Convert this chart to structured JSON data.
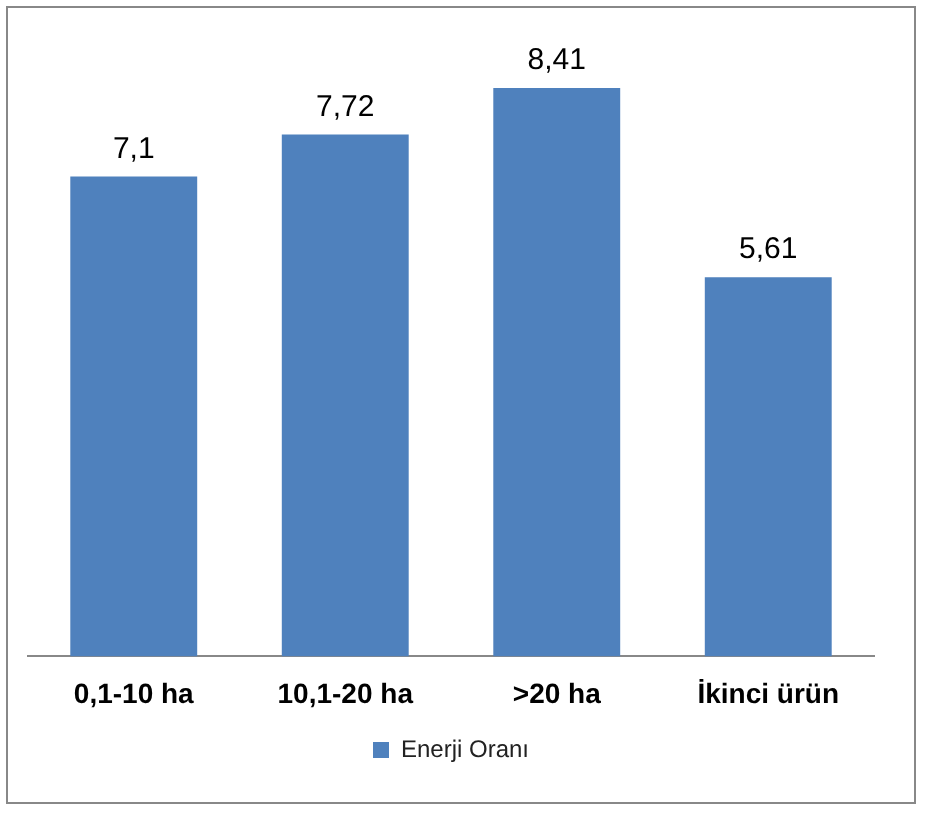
{
  "chart_data": {
    "type": "bar",
    "categories": [
      "0,1-10 ha",
      "10,1-20 ha",
      ">20 ha",
      "İkinci ürün"
    ],
    "series": [
      {
        "name": "Enerji Oranı",
        "color": "#4f81bd",
        "values": [
          7.1,
          7.72,
          8.41,
          5.61
        ],
        "value_labels": [
          "7,1",
          "7,72",
          "8,41",
          "5,61"
        ]
      }
    ],
    "legend": "bottom",
    "grid": false,
    "tick_labels": "x"
  }
}
